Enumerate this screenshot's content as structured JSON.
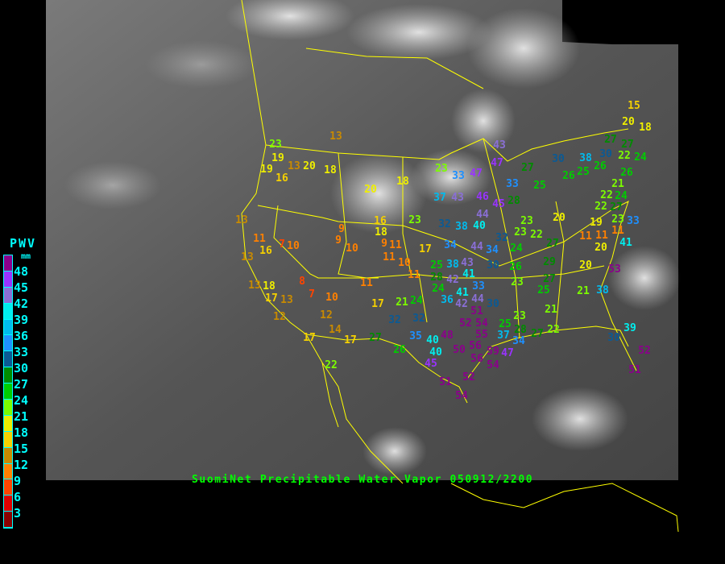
{
  "title": "SuomiNet Precipitable Water Vapor 050912/2200",
  "legend": {
    "title": "PWV",
    "unit": "mm",
    "labels": [
      "48",
      "45",
      "42",
      "39",
      "36",
      "33",
      "30",
      "27",
      "24",
      "21",
      "18",
      "15",
      "12",
      "9",
      "6",
      "3"
    ],
    "colors": [
      "#8b008b",
      "#9933ff",
      "#8a6fd6",
      "#00eeee",
      "#00bbee",
      "#1e90ff",
      "#0b5a94",
      "#008b00",
      "#00cc00",
      "#7cfc00",
      "#eeee00",
      "#f5d000",
      "#c88a00",
      "#ff8000",
      "#ff4400",
      "#dd0000",
      "#8b0000"
    ]
  },
  "colors": {
    "borders": "#ffff00",
    "background": "#000000"
  },
  "stations": [
    13,
    23,
    19,
    13,
    20,
    18,
    19,
    16,
    20,
    18,
    13,
    11,
    16,
    7,
    10,
    9,
    9,
    10,
    18,
    9,
    11,
    11,
    10,
    13,
    11,
    8,
    13,
    18,
    17,
    13,
    7,
    10,
    11,
    12,
    12,
    14,
    17,
    17,
    17,
    21,
    24,
    32,
    32,
    27,
    35,
    40,
    26,
    22,
    16,
    23,
    17,
    23,
    33,
    47,
    43,
    47,
    27,
    30,
    38,
    26,
    25,
    26,
    27,
    27,
    30,
    22,
    24,
    26,
    21,
    33,
    25,
    37,
    43,
    46,
    45,
    28,
    22,
    24,
    22,
    27,
    44,
    32,
    38,
    40,
    23,
    23,
    22,
    20,
    19,
    11,
    11,
    11,
    23,
    33,
    41,
    20,
    20,
    53,
    34,
    44,
    34,
    32,
    24,
    27,
    30,
    26,
    29,
    25,
    38,
    43,
    41,
    42,
    28,
    23,
    27,
    25,
    21,
    38,
    24,
    36,
    41,
    42,
    44,
    33,
    51,
    30,
    21,
    23,
    25,
    52,
    54,
    55,
    37,
    34,
    28,
    27,
    22,
    39,
    30,
    48,
    40,
    56,
    50,
    56,
    59,
    54,
    47,
    52,
    51,
    45,
    51,
    52,
    54,
    15,
    20,
    18
  ]
}
